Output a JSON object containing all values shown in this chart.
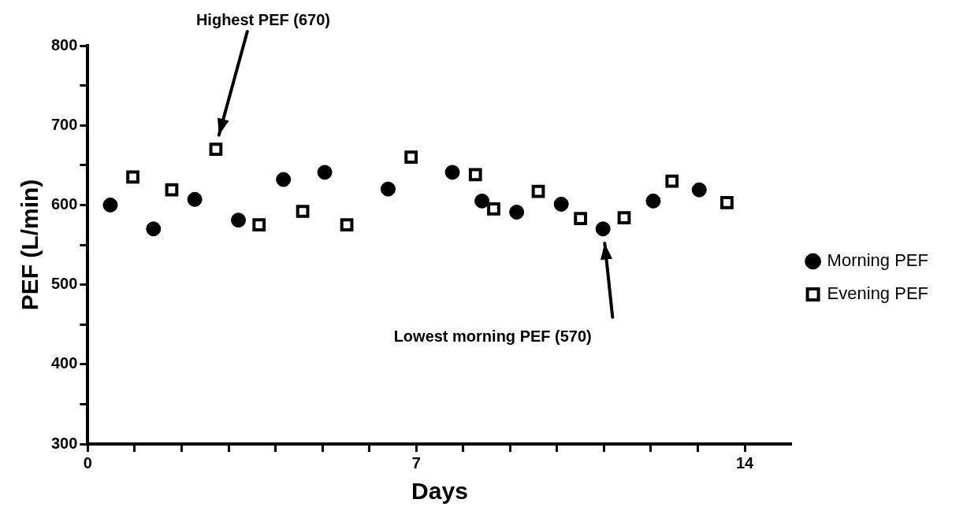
{
  "chart_data": {
    "type": "scatter",
    "xlabel": "Days",
    "ylabel": "PEF (L/min)",
    "xlim": [
      0,
      15
    ],
    "xticks": [
      0,
      {
        "value": 1,
        "label": null
      },
      {
        "value": 2,
        "label": null
      },
      {
        "value": 3,
        "label": null
      },
      {
        "value": 4,
        "label": null
      },
      {
        "value": 5,
        "label": null
      },
      {
        "value": 6,
        "label": null
      },
      7,
      {
        "value": 8,
        "label": null
      },
      {
        "value": 9,
        "label": null
      },
      {
        "value": 10,
        "label": null
      },
      {
        "value": 11,
        "label": null
      },
      {
        "value": 12,
        "label": null
      },
      {
        "value": 13,
        "label": null
      },
      14
    ],
    "ylim": [
      300,
      800
    ],
    "yticks": [
      300,
      {
        "value": 350,
        "label": null
      },
      400,
      {
        "value": 450,
        "label": null
      },
      500,
      {
        "value": 550,
        "label": null
      },
      600,
      {
        "value": 650,
        "label": null
      },
      700,
      {
        "value": 750,
        "label": null
      },
      800
    ],
    "grid": false,
    "legend": "right",
    "series": [
      {
        "name": "Morning PEF",
        "color": "#000000",
        "marker": "circle",
        "x": [
          0.48,
          1.4,
          2.28,
          3.21,
          4.17,
          5.05,
          6.4,
          7.77,
          8.4,
          9.14,
          10.09,
          10.98,
          12.05,
          13.03
        ],
        "values": [
          600,
          570,
          607,
          581,
          632,
          641,
          620,
          641,
          605,
          591,
          601,
          570,
          605,
          619
        ]
      },
      {
        "name": "Evening PEF",
        "color": "#000000",
        "marker": "square",
        "x": [
          0.96,
          1.79,
          2.73,
          3.65,
          4.58,
          5.52,
          6.89,
          8.26,
          8.65,
          9.6,
          10.5,
          11.43,
          12.45,
          13.62
        ],
        "values": [
          635,
          619,
          670,
          575,
          592,
          575,
          660,
          638,
          595,
          617,
          583,
          584,
          630,
          603
        ]
      }
    ],
    "annotations": [
      "Highest PEF (670)",
      "Lowest morning PEF (570)"
    ]
  }
}
